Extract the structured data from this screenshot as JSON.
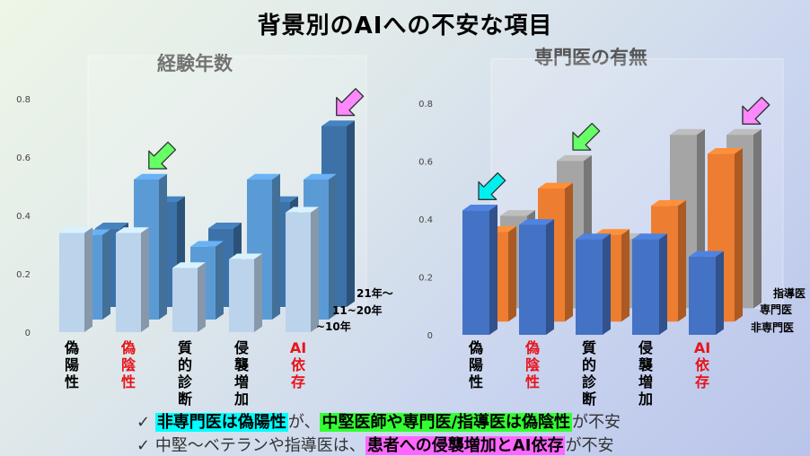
{
  "title": "背景別のAIへの不安な項目",
  "chart_data": [
    {
      "type": "bar",
      "title": "経験年数",
      "categories": [
        "偽陽性",
        "偽陰性",
        "質的診断",
        "侵襲増加",
        "AI依存"
      ],
      "highlight_categories": [
        "偽陰性",
        "AI依存"
      ],
      "ylim": [
        0,
        0.8
      ],
      "yticks": [
        "0",
        "0.2",
        "0.4",
        "0.6",
        "0.8"
      ],
      "series": [
        {
          "name": "~10年",
          "values": [
            0.34,
            0.34,
            0.22,
            0.25,
            0.41
          ],
          "color": "#bcd3ec"
        },
        {
          "name": "11~20年",
          "values": [
            0.29,
            0.48,
            0.25,
            0.48,
            0.48
          ],
          "color": "#5b9bd5"
        },
        {
          "name": "21年～",
          "values": [
            0.27,
            0.36,
            0.27,
            0.36,
            0.62
          ],
          "color": "#3d72a8"
        }
      ],
      "arrows": [
        {
          "category": "偽陰性",
          "color": "#66ff66"
        },
        {
          "category": "AI依存",
          "color": "#ff88ff"
        },
        {
          "category": "AI依存",
          "color": "#ff88ff",
          "series": "21年～"
        }
      ]
    },
    {
      "type": "bar",
      "title": "専門医の有無",
      "categories": [
        "偽陽性",
        "偽陰性",
        "質的診断",
        "侵襲増加",
        "AI依存"
      ],
      "highlight_categories": [
        "偽陰性",
        "AI依存"
      ],
      "ylim": [
        0,
        0.8
      ],
      "yticks": [
        "0",
        "0.2",
        "0.4",
        "0.6",
        "0.8"
      ],
      "series": [
        {
          "name": "非専門医",
          "values": [
            0.43,
            0.38,
            0.33,
            0.33,
            0.27
          ],
          "color": "#4472c4"
        },
        {
          "name": "専門医",
          "values": [
            0.31,
            0.46,
            0.3,
            0.4,
            0.58
          ],
          "color": "#ed7d31"
        },
        {
          "name": "指導医",
          "values": [
            0.32,
            0.51,
            0.24,
            0.6,
            0.6
          ],
          "color": "#a5a5a5"
        }
      ],
      "arrows": [
        {
          "category": "偽陽性",
          "color": "#00f0f0"
        },
        {
          "category": "偽陰性",
          "color": "#66ff66"
        },
        {
          "category": "AI依存",
          "color": "#ff88ff"
        },
        {
          "category": "AI依存",
          "color": "#ff88ff",
          "series": "指導医"
        }
      ]
    }
  ],
  "notes": [
    {
      "check": "✓",
      "segments": [
        {
          "text": "非専門医は偽陽性",
          "hl": "cyan"
        },
        {
          "text": "が、",
          "hl": ""
        },
        {
          "text": "中堅医師や専門医/指導医は偽陰性",
          "hl": "green"
        },
        {
          "text": "が不安",
          "hl": ""
        }
      ]
    },
    {
      "check": "✓",
      "segments": [
        {
          "text": "中堅～ベテランや指導医は、",
          "hl": ""
        },
        {
          "text": "患者への侵襲増加とAI依存",
          "hl": "pink"
        },
        {
          "text": "が不安",
          "hl": ""
        }
      ]
    }
  ]
}
